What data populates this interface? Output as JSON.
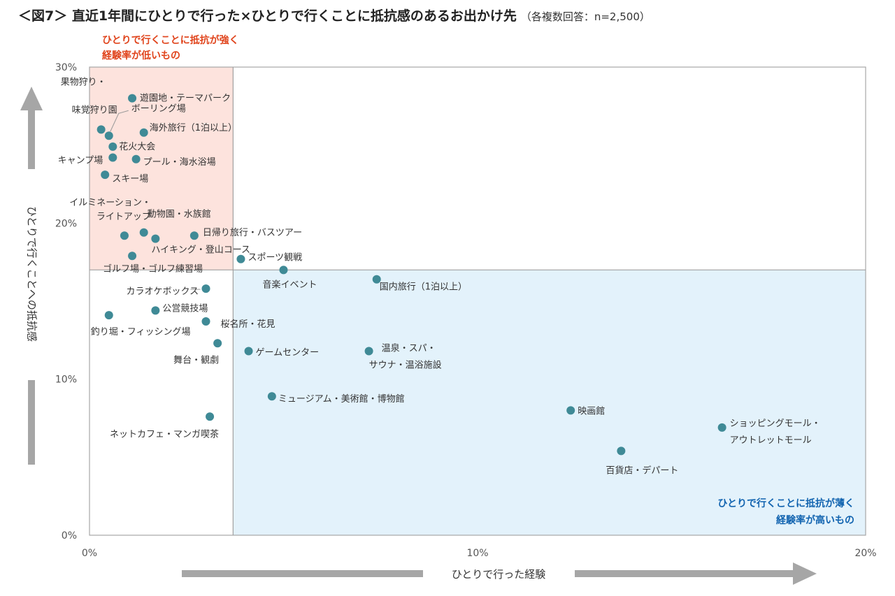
{
  "title": "＜図7＞ 直近1年間にひとりで行った×ひとりで行くことに抵抗感のあるお出かけ先",
  "subtitle": "（各複数回答：n=2,500）",
  "quadrants": {
    "top_left": [
      "ひとりで行くことに抵抗が強く",
      "経験率が低いもの"
    ],
    "bottom_right": [
      "ひとりで行くことに抵抗が薄く",
      "経験率が高いもの"
    ]
  },
  "colors": {
    "point": "#3f8a96",
    "top_left_fill": "#fde3dd",
    "bottom_right_fill": "#e3f2fb",
    "quadrant_line": "#a0a0a0",
    "arrow": "#a6a6a6",
    "red_text": "#e0441c",
    "blue_text": "#1264b0"
  },
  "chart_data": {
    "type": "scatter",
    "xlabel": "ひとりで行った経験",
    "ylabel": "ひとりで行くことへの抵抗感",
    "xlim": [
      0,
      20
    ],
    "ylim": [
      0,
      30
    ],
    "x_ticks": [
      "0%",
      "10%",
      "20%"
    ],
    "y_ticks": [
      "0%",
      "10%",
      "20%",
      "30%"
    ],
    "x_divider": 3.7,
    "y_divider": 17.0,
    "grid": false,
    "points": [
      {
        "lines": [
          "遊園地・テーマパーク"
        ],
        "x": 1.1,
        "y": 28.0
      },
      {
        "lines": [
          "果物狩り・",
          "味覚狩り園"
        ],
        "x": 0.3,
        "y": 26.0
      },
      {
        "lines": [
          "ボーリング場"
        ],
        "x": 0.5,
        "y": 25.6
      },
      {
        "lines": [
          "海外旅行（1泊以上）"
        ],
        "x": 1.4,
        "y": 25.8
      },
      {
        "lines": [
          "花火大会"
        ],
        "x": 0.6,
        "y": 24.9
      },
      {
        "lines": [
          "キャンプ場"
        ],
        "x": 0.6,
        "y": 24.2
      },
      {
        "lines": [
          "プール・海水浴場"
        ],
        "x": 1.2,
        "y": 24.1
      },
      {
        "lines": [
          "スキー場"
        ],
        "x": 0.4,
        "y": 23.1
      },
      {
        "lines": [
          "イルミネーション・",
          "ライトアップ"
        ],
        "x": 0.9,
        "y": 19.2
      },
      {
        "lines": [
          "動物園・水族館"
        ],
        "x": 1.4,
        "y": 19.4
      },
      {
        "lines": [
          "ハイキング・登山コース"
        ],
        "x": 1.7,
        "y": 19.0
      },
      {
        "lines": [
          "日帰り旅行・バスツアー"
        ],
        "x": 2.7,
        "y": 19.2
      },
      {
        "lines": [
          "ゴルフ場・ゴルフ練習場"
        ],
        "x": 1.1,
        "y": 17.9
      },
      {
        "lines": [
          "スポーツ観戦"
        ],
        "x": 3.9,
        "y": 17.7
      },
      {
        "lines": [
          "音楽イベント"
        ],
        "x": 5.0,
        "y": 17.0
      },
      {
        "lines": [
          "国内旅行（1泊以上）"
        ],
        "x": 7.4,
        "y": 16.4
      },
      {
        "lines": [
          "カラオケボックス"
        ],
        "x": 3.0,
        "y": 15.8
      },
      {
        "lines": [
          "公営競技場"
        ],
        "x": 1.7,
        "y": 14.4
      },
      {
        "lines": [
          "釣り堀・フィッシング場"
        ],
        "x": 0.5,
        "y": 14.1
      },
      {
        "lines": [
          "桜名所・花見"
        ],
        "x": 3.0,
        "y": 13.7
      },
      {
        "lines": [
          "舞台・観劇"
        ],
        "x": 3.3,
        "y": 12.3
      },
      {
        "lines": [
          "ゲームセンター"
        ],
        "x": 4.1,
        "y": 11.8
      },
      {
        "lines": [
          "温泉・スパ・",
          "サウナ・温浴施設"
        ],
        "x": 7.2,
        "y": 11.8
      },
      {
        "lines": [
          "ミュージアム・美術館・博物館"
        ],
        "x": 4.7,
        "y": 8.9
      },
      {
        "lines": [
          "映画館"
        ],
        "x": 12.4,
        "y": 8.0
      },
      {
        "lines": [
          "ネットカフェ・マンガ喫茶"
        ],
        "x": 3.1,
        "y": 7.6
      },
      {
        "lines": [
          "ショッピングモール・",
          "アウトレットモール"
        ],
        "x": 16.3,
        "y": 6.9
      },
      {
        "lines": [
          "百貨店・デパート"
        ],
        "x": 13.7,
        "y": 5.4
      }
    ]
  }
}
